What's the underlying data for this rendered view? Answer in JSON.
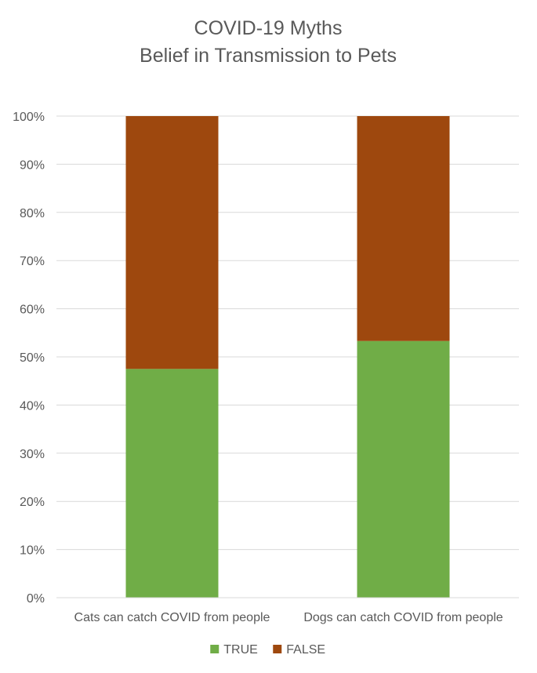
{
  "chart_data": {
    "type": "bar",
    "stacked": true,
    "title": "COVID-19  Myths",
    "subtitle": "Belief in Transmission to Pets",
    "categories": [
      "Cats can catch COVID from people",
      "Dogs can catch COVID from people"
    ],
    "series": [
      {
        "name": "TRUE",
        "values": [
          0.475,
          0.533
        ],
        "color": "#70AD47"
      },
      {
        "name": "FALSE",
        "values": [
          0.525,
          0.467
        ],
        "color": "#9E480E"
      }
    ],
    "y_ticks": [
      "0%",
      "10%",
      "20%",
      "30%",
      "40%",
      "50%",
      "60%",
      "70%",
      "80%",
      "90%",
      "100%"
    ],
    "ylim": [
      0,
      1
    ],
    "grid": true,
    "legend_position": "bottom"
  }
}
